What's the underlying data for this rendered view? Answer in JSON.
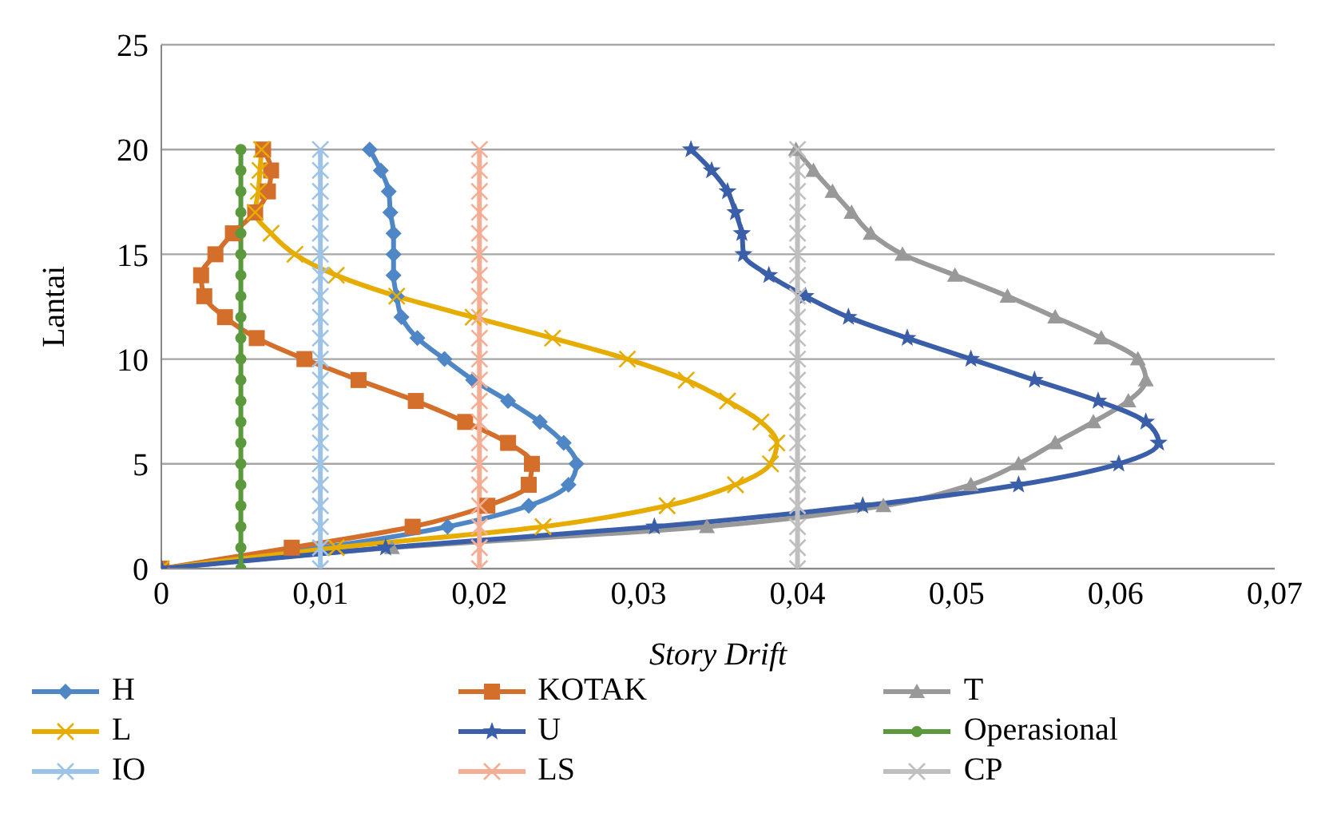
{
  "chart_data": {
    "type": "line",
    "xlabel": "Story Drift",
    "ylabel": "Lantai",
    "xlim": [
      0,
      0.07
    ],
    "xticks": [
      0,
      {
        "value": 0.01,
        "label": "0,01"
      },
      {
        "value": 0.02,
        "label": "0,02"
      },
      {
        "value": 0.03,
        "label": "0,03"
      },
      {
        "value": 0.04,
        "label": "0,04"
      },
      {
        "value": 0.05,
        "label": "0,05"
      },
      {
        "value": 0.06,
        "label": "0,06"
      },
      {
        "value": 0.07,
        "label": "0,07"
      }
    ],
    "ylim": [
      0,
      25
    ],
    "yticks": [
      0,
      5,
      10,
      15,
      20,
      25
    ],
    "grid": "y",
    "legend": "bottom",
    "line_style": "solid",
    "series": [
      {
        "name": "H",
        "color": "#4f86c6",
        "marker": "diamond",
        "x": [
          0,
          0.014,
          0.018,
          0.0231,
          0.0256,
          0.0261,
          0.0253,
          0.0238,
          0.0218,
          0.0196,
          0.0178,
          0.0161,
          0.0151,
          0.0148,
          0.0146,
          0.0146,
          0.0146,
          0.0144,
          0.0143,
          0.0138,
          0.0131
        ],
        "values": [
          0,
          null,
          2,
          3,
          4,
          5,
          6,
          7,
          8,
          9,
          10,
          11,
          12,
          13,
          14,
          15,
          16,
          17,
          18,
          19,
          20
        ]
      },
      {
        "name": "KOTAK",
        "color": "#d46e2b",
        "marker": "square",
        "x": [
          0,
          0.0082,
          0.0158,
          0.0205,
          0.0231,
          0.0233,
          0.0218,
          0.0191,
          0.016,
          0.0124,
          0.009,
          0.006,
          0.004,
          0.0027,
          0.0025,
          0.0034,
          0.0045,
          0.0059,
          0.0067,
          0.0069,
          0.0064
        ],
        "values": [
          0,
          1,
          2,
          3,
          4,
          5,
          6,
          7,
          8,
          9,
          10,
          11,
          12,
          13,
          14,
          15,
          16,
          17,
          18,
          19,
          20
        ]
      },
      {
        "name": "T",
        "color": "#999999",
        "marker": "triangle",
        "x": [
          0,
          0.0145,
          0.0343,
          0.0454,
          0.0509,
          0.0539,
          0.0562,
          0.0586,
          0.0608,
          0.0619,
          0.0614,
          0.0591,
          0.0562,
          0.0532,
          0.0499,
          0.0466,
          0.0446,
          0.0434,
          0.0422,
          0.041,
          0.0399
        ],
        "values": [
          0,
          1,
          2,
          3,
          4,
          5,
          6,
          7,
          8,
          9,
          10,
          11,
          12,
          13,
          14,
          15,
          16,
          17,
          18,
          19,
          20
        ]
      },
      {
        "name": "L",
        "color": "#e6ac00",
        "marker": "cross",
        "x": [
          0,
          0.011,
          0.024,
          0.0318,
          0.0361,
          0.0383,
          0.0387,
          0.0377,
          0.0356,
          0.033,
          0.0293,
          0.0246,
          0.0196,
          0.0148,
          0.011,
          0.0084,
          0.0069,
          0.0059,
          0.0061,
          0.0062,
          0.0063
        ],
        "values": [
          0,
          1,
          2,
          3,
          4,
          5,
          6,
          7,
          8,
          9,
          10,
          11,
          12,
          13,
          14,
          15,
          16,
          17,
          18,
          19,
          20
        ]
      },
      {
        "name": "U",
        "color": "#3a5ea8",
        "marker": "star",
        "x": [
          0,
          0.0141,
          0.031,
          0.0441,
          0.0539,
          0.0602,
          0.0627,
          0.0619,
          0.0589,
          0.0549,
          0.0509,
          0.0469,
          0.0432,
          0.0405,
          0.0382,
          0.0366,
          0.0365,
          0.0361,
          0.0356,
          0.0346,
          0.0333
        ],
        "values": [
          0,
          1,
          2,
          3,
          4,
          5,
          6,
          7,
          8,
          9,
          10,
          11,
          12,
          13,
          14,
          15,
          16,
          17,
          18,
          19,
          20
        ]
      },
      {
        "name": "Operasional",
        "color": "#5b9a3c",
        "marker": "circle",
        "x": [
          0.005,
          0.005,
          0.005,
          0.005,
          0.005,
          0.005,
          0.005,
          0.005,
          0.005,
          0.005,
          0.005,
          0.005,
          0.005,
          0.005,
          0.005,
          0.005,
          0.005,
          0.005,
          0.005,
          0.005,
          0.005
        ],
        "values": [
          0,
          1,
          2,
          3,
          4,
          5,
          6,
          7,
          8,
          9,
          10,
          11,
          12,
          13,
          14,
          15,
          16,
          17,
          18,
          19,
          20
        ]
      },
      {
        "name": "IO",
        "color": "#9dc3e6",
        "marker": "cross",
        "x": [
          0.01,
          0.01,
          0.01,
          0.01,
          0.01,
          0.01,
          0.01,
          0.01,
          0.01,
          0.01,
          0.01,
          0.01,
          0.01,
          0.01,
          0.01,
          0.01,
          0.01,
          0.01,
          0.01,
          0.01,
          0.01
        ],
        "values": [
          0,
          1,
          2,
          3,
          4,
          5,
          6,
          7,
          8,
          9,
          10,
          11,
          12,
          13,
          14,
          15,
          16,
          17,
          18,
          19,
          20
        ]
      },
      {
        "name": "LS",
        "color": "#f4ae95",
        "marker": "cross",
        "x": [
          0.02,
          0.02,
          0.02,
          0.02,
          0.02,
          0.02,
          0.02,
          0.02,
          0.02,
          0.02,
          0.02,
          0.02,
          0.02,
          0.02,
          0.02,
          0.02,
          0.02,
          0.02,
          0.02,
          0.02,
          0.02
        ],
        "values": [
          0,
          1,
          2,
          3,
          4,
          5,
          6,
          7,
          8,
          9,
          10,
          11,
          12,
          13,
          14,
          15,
          16,
          17,
          18,
          19,
          20
        ]
      },
      {
        "name": "CP",
        "color": "#bfbfbf",
        "marker": "cross",
        "x": [
          0.04,
          0.04,
          0.04,
          0.04,
          0.04,
          0.04,
          0.04,
          0.04,
          0.04,
          0.04,
          0.04,
          0.04,
          0.04,
          0.04,
          0.04,
          0.04,
          0.04,
          0.04,
          0.04,
          0.04,
          0.04
        ],
        "values": [
          0,
          1,
          2,
          3,
          4,
          5,
          6,
          7,
          8,
          9,
          10,
          11,
          12,
          13,
          14,
          15,
          16,
          17,
          18,
          19,
          20
        ]
      }
    ]
  }
}
